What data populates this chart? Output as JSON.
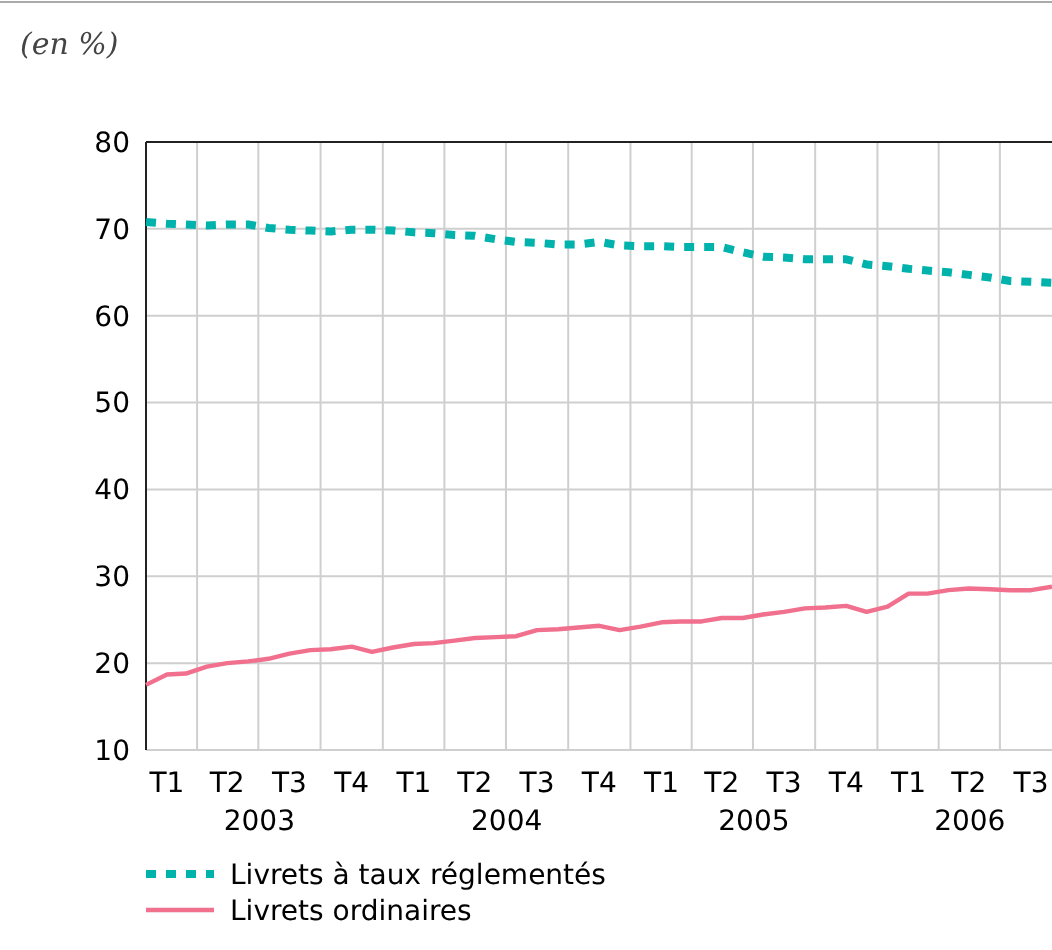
{
  "chart_data": {
    "type": "line",
    "ylabel": "(en %)",
    "x": [
      "2003-01",
      "2003-02",
      "2003-03",
      "2003-04",
      "2003-05",
      "2003-06",
      "2003-07",
      "2003-08",
      "2003-09",
      "2003-10",
      "2003-11",
      "2003-12",
      "2004-01",
      "2004-02",
      "2004-03",
      "2004-04",
      "2004-05",
      "2004-06",
      "2004-07",
      "2004-08",
      "2004-09",
      "2004-10",
      "2004-11",
      "2004-12",
      "2005-01",
      "2005-02",
      "2005-03",
      "2005-04",
      "2005-05",
      "2005-06",
      "2005-07",
      "2005-08",
      "2005-09",
      "2005-10",
      "2005-11",
      "2005-12",
      "2006-01",
      "2006-02",
      "2006-03",
      "2006-04",
      "2006-05",
      "2006-06",
      "2006-07",
      "2006-08",
      "2006-09"
    ],
    "series": [
      {
        "name": "Livrets à taux réglementés",
        "color": "#00b2ac",
        "line_style": "dotted",
        "values": [
          70.8,
          70.6,
          70.5,
          70.4,
          70.5,
          70.5,
          70.1,
          69.9,
          69.8,
          69.7,
          69.9,
          69.9,
          69.8,
          69.6,
          69.5,
          69.3,
          69.2,
          68.8,
          68.5,
          68.4,
          68.2,
          68.2,
          68.5,
          68.1,
          68.0,
          68.0,
          67.9,
          67.9,
          67.9,
          67.3,
          66.8,
          66.7,
          66.5,
          66.5,
          66.5,
          65.9,
          65.7,
          65.4,
          65.2,
          65.0,
          64.7,
          64.4,
          64.0,
          63.9,
          63.8
        ]
      },
      {
        "name": "Livrets ordinaires",
        "color": "#f0708e",
        "line_style": "solid",
        "values": [
          17.5,
          18.7,
          18.8,
          19.6,
          20.0,
          20.2,
          20.5,
          21.1,
          21.5,
          21.6,
          21.9,
          21.3,
          21.8,
          22.2,
          22.3,
          22.6,
          22.9,
          23.0,
          23.1,
          23.8,
          23.9,
          24.1,
          24.3,
          23.8,
          24.2,
          24.7,
          24.8,
          24.8,
          25.2,
          25.2,
          25.6,
          25.9,
          26.3,
          26.4,
          26.6,
          25.9,
          26.5,
          28.0,
          28.0,
          28.4,
          28.6,
          28.5,
          28.4,
          28.4,
          28.8
        ]
      }
    ],
    "xlim": [
      "2003-01",
      "2006-09"
    ],
    "xticks": [
      {
        "value": "2003-02",
        "label": "T1"
      },
      {
        "value": "2003-05",
        "label": "T2"
      },
      {
        "value": "2003-08",
        "label": "T3"
      },
      {
        "value": "2003-11",
        "label": "T4"
      },
      {
        "value": "2004-02",
        "label": "T1"
      },
      {
        "value": "2004-05",
        "label": "T2"
      },
      {
        "value": "2004-08",
        "label": "T3"
      },
      {
        "value": "2004-11",
        "label": "T4"
      },
      {
        "value": "2005-02",
        "label": "T1"
      },
      {
        "value": "2005-05",
        "label": "T2"
      },
      {
        "value": "2005-08",
        "label": "T3"
      },
      {
        "value": "2005-11",
        "label": "T4"
      },
      {
        "value": "2006-02",
        "label": "T1"
      },
      {
        "value": "2006-05",
        "label": "T2"
      },
      {
        "value": "2006-08",
        "label": "T3"
      }
    ],
    "ylim": [
      10,
      80
    ],
    "yticks": [
      10,
      20,
      30,
      40,
      50,
      60,
      70,
      80
    ],
    "annotations": [
      "2003",
      "2004",
      "2005",
      "2006"
    ],
    "grid": true,
    "legend": "bottom"
  }
}
